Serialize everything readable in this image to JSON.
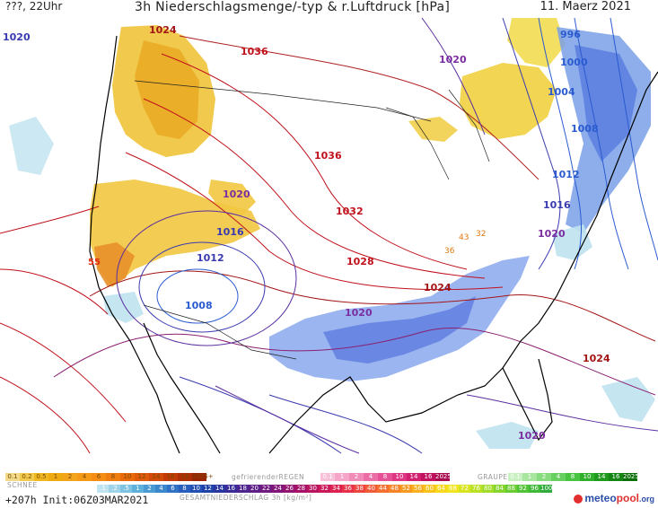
{
  "header": {
    "run_info": "???, 22Uhr",
    "title": "3h Niederschlagsmenge/-typ & r.Luftdruck [hPa]",
    "date": "11. Maerz 2021"
  },
  "isobars": [
    {
      "label": "1020",
      "color": "#3a3ab0"
    },
    {
      "label": "1024",
      "color": "#a31515"
    },
    {
      "label": "1036",
      "color": "#c0101a"
    },
    {
      "label": "1036",
      "color": "#c0101a"
    },
    {
      "label": "1032",
      "color": "#c0101a"
    },
    {
      "label": "1028",
      "color": "#c0101a"
    },
    {
      "label": "1024",
      "color": "#a31515"
    },
    {
      "label": "1020",
      "color": "#7a2ea0"
    },
    {
      "label": "1020",
      "color": "#7a2ea0"
    },
    {
      "label": "1016",
      "color": "#3a3ab0"
    },
    {
      "label": "1012",
      "color": "#3a3ab0"
    },
    {
      "label": "1008",
      "color": "#2b5bd0"
    },
    {
      "label": "1020",
      "color": "#7a2ea0"
    },
    {
      "label": "1004",
      "color": "#2b5bd0"
    },
    {
      "label": "1000",
      "color": "#2b5bd0"
    },
    {
      "label": "996",
      "color": "#2b5bd0"
    },
    {
      "label": "1008",
      "color": "#2b5bd0"
    },
    {
      "label": "1012",
      "color": "#2b5bd0"
    },
    {
      "label": "1016",
      "color": "#3a3ab0"
    },
    {
      "label": "1020",
      "color": "#7a2ea0"
    },
    {
      "label": "1024",
      "color": "#a31515"
    },
    {
      "label": "1020",
      "color": "#7a2ea0"
    }
  ],
  "thickness_labels": [
    {
      "label": "43",
      "color": "#e07a10"
    },
    {
      "label": "32",
      "color": "#e07a10"
    },
    {
      "label": "36",
      "color": "#e07a10"
    },
    {
      "label": "55",
      "color": "#e03010"
    }
  ],
  "legend": {
    "snow": {
      "values": [
        "0.1",
        "0.2",
        "0.5",
        "1",
        "2",
        "4",
        "6",
        "8",
        "10",
        "12",
        "14",
        "16",
        "18",
        "2025+"
      ],
      "colors": [
        "#f3d98a",
        "#f0c94e",
        "#efb820",
        "#eeaa10",
        "#f2a51a",
        "#f59a16",
        "#f58d14",
        "#f07d10",
        "#e86a0c",
        "#dd5a0a",
        "#d24a08",
        "#c23a06",
        "#b02e05",
        "#9a2404"
      ],
      "caption": "SCHNEE"
    },
    "freezing_rain": {
      "caption": "gefrierenderREGEN",
      "values": [
        "0.1",
        "1",
        "2",
        "4",
        "8",
        "10",
        "14",
        "16",
        "2025+"
      ],
      "colors": [
        "#f7c0d8",
        "#f5a6c8",
        "#f18cb8",
        "#ec6ea6",
        "#e65094",
        "#de3682",
        "#d22070",
        "#c0105e",
        "#a8084e"
      ]
    },
    "graupel": {
      "caption": "GRAUPEL",
      "values": [
        "0.1",
        "1",
        "2",
        "4",
        "8",
        "10",
        "14",
        "16",
        "2025+"
      ],
      "colors": [
        "#c8f0c0",
        "#a8e6a0",
        "#88dc80",
        "#68d060",
        "#48c440",
        "#30b02a",
        "#209a1c",
        "#148412",
        "#0a6e08"
      ]
    },
    "total": {
      "values": [
        ".1",
        ".2",
        ".5",
        "1",
        "2",
        "4",
        "6",
        "8",
        "10",
        "12",
        "14",
        "16",
        "18",
        "20",
        "22",
        "24",
        "26",
        "28",
        "30",
        "32",
        "34",
        "36",
        "38",
        "40",
        "44",
        "48",
        "52",
        "56",
        "60",
        "64",
        "68",
        "72",
        "76",
        "80",
        "84",
        "88",
        "92",
        "96",
        "100"
      ],
      "colors": [
        "#bfe3f0",
        "#9fd3ea",
        "#7fc2e2",
        "#5fb0da",
        "#4a9ad3",
        "#3c86cc",
        "#3272c4",
        "#2a5ebc",
        "#2450b4",
        "#1e42aa",
        "#2a36a0",
        "#3a2c98",
        "#4c2490",
        "#5e1e88",
        "#701a80",
        "#821678",
        "#941470",
        "#a61268",
        "#b81460",
        "#ca1858",
        "#dc2050",
        "#e83048",
        "#ee4440",
        "#f25a38",
        "#f46e30",
        "#f68428",
        "#f89a22",
        "#f8b01e",
        "#f8c41c",
        "#f8d81c",
        "#f0e41e",
        "#d8e420",
        "#bce024",
        "#a0dc28",
        "#84d42c",
        "#68cc30",
        "#50c434",
        "#40b838",
        "#30ac3c"
      ],
      "caption": "GESAMTNIEDERSCHLAG 3h [kg/m²]"
    }
  },
  "footer": {
    "run": "+207h  Init:06Z03MAR2021",
    "logo_meteo": "meteo",
    "logo_pool": "pool",
    "logo_org": ".org",
    "logo_color_meteo": "#2b4fa8",
    "logo_color_pool": "#e03030"
  }
}
